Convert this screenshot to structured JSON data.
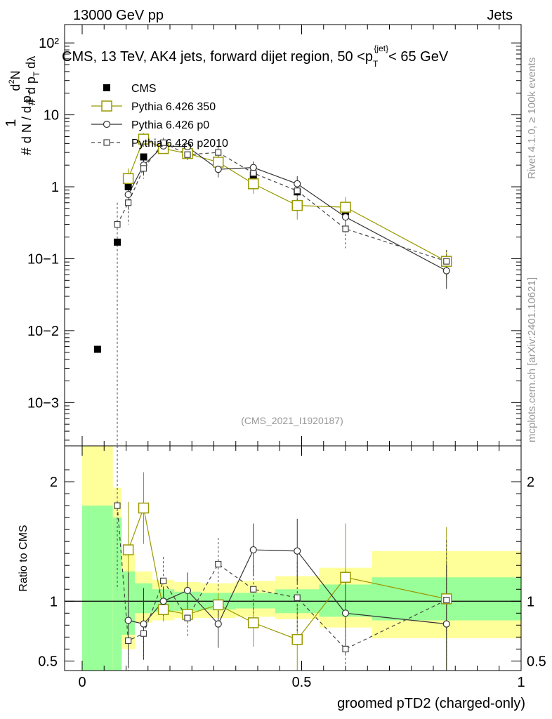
{
  "header": {
    "left": "13000 GeV pp",
    "right": "Jets"
  },
  "side_labels": {
    "rivet": "Rivet 4.1.0, ≥ 100k events",
    "mcplots": "mcplots.cern.ch [arXiv:2401.10621]"
  },
  "colors": {
    "cms": "#000000",
    "pythia350": "#999900",
    "p0": "#333333",
    "p2010": "#444444",
    "band_yellow": "#ffff99",
    "band_green": "#99ff99",
    "watermark": "#999999"
  },
  "chart_data": [
    {
      "type": "line",
      "title": "CMS, 13 TeV, AK4 jets, forward dijet region, 50 <p",
      "title_sup": "{jet}",
      "title_sub": "T",
      "title_tail": "< 65 GeV",
      "ylabel": "# 1/(d N / d p_T) # d²N/(d p_T dλ)",
      "yscale": "log",
      "ylim": [
        0.00025,
        180
      ],
      "xlim": [
        -0.04,
        1.0
      ],
      "ytick_labels": [
        "10−3",
        "10−2",
        "10−1",
        "1",
        "10",
        "10²"
      ],
      "watermark": "(CMS_2021_I1920187)",
      "legend": [
        "CMS",
        "Pythia 6.426 350",
        "Pythia 6.426 p0",
        "Pythia 6.426 p2010"
      ],
      "series": [
        {
          "name": "CMS",
          "x": [
            0.035,
            0.08,
            0.105,
            0.14,
            0.185,
            0.24,
            0.31,
            0.39,
            0.49,
            0.6,
            0.83
          ],
          "y": [
            0.0055,
            0.17,
            1.0,
            2.6,
            3.8,
            3.5,
            2.3,
            1.45,
            0.85,
            0.45,
            0.09
          ]
        },
        {
          "name": "Pythia 6.426 350",
          "x": [
            0.105,
            0.14,
            0.185,
            0.24,
            0.31,
            0.39,
            0.49,
            0.6,
            0.83
          ],
          "y": [
            1.3,
            4.6,
            3.4,
            2.9,
            2.2,
            1.1,
            0.55,
            0.52,
            0.092
          ],
          "err": [
            0.5,
            1.0,
            0.5,
            0.4,
            0.4,
            0.3,
            0.2,
            0.2,
            0.04
          ]
        },
        {
          "name": "Pythia 6.426 p0",
          "x": [
            0.105,
            0.14,
            0.185,
            0.24,
            0.31,
            0.39,
            0.49,
            0.6,
            0.83
          ],
          "y": [
            0.78,
            2.0,
            3.7,
            3.6,
            1.75,
            1.85,
            1.1,
            0.38,
            0.068
          ],
          "err": [
            0.3,
            0.5,
            0.5,
            0.4,
            0.4,
            0.4,
            0.3,
            0.15,
            0.03
          ]
        },
        {
          "name": "Pythia 6.426 p2010",
          "x": [
            0.08,
            0.105,
            0.14,
            0.185,
            0.24,
            0.31,
            0.39,
            0.49,
            0.6,
            0.83
          ],
          "y": [
            0.3,
            0.6,
            1.8,
            4.1,
            2.8,
            3.0,
            1.55,
            0.88,
            0.26,
            0.092
          ],
          "err": [
            0.3,
            0.3,
            0.5,
            0.7,
            0.5,
            0.6,
            0.4,
            0.3,
            0.12,
            0.04
          ]
        }
      ]
    },
    {
      "type": "line",
      "title": "",
      "xlabel": "groomed pTD2 (charged-only)",
      "ylabel": "Ratio to CMS",
      "ylim": [
        0.42,
        2.3
      ],
      "xlim": [
        -0.04,
        1.0
      ],
      "yticks": [
        0.5,
        1,
        2
      ],
      "ytick_labels": [
        "0.5",
        "1",
        "2"
      ],
      "xticks": [
        0,
        0.5,
        1
      ],
      "xtick_labels": [
        "0",
        "0.5",
        "1"
      ],
      "bands": [
        {
          "x0": 0.0,
          "x1": 0.07,
          "y_lo": 0.42,
          "y_hi": 2.3,
          "inner_lo": 0.42,
          "inner_hi": 1.8
        },
        {
          "x0": 0.07,
          "x1": 0.09,
          "y_lo": 0.42,
          "y_hi": 1.95,
          "inner_lo": 0.42,
          "inner_hi": 1.7
        },
        {
          "x0": 0.09,
          "x1": 0.12,
          "y_lo": 0.6,
          "y_hi": 1.4,
          "inner_lo": 0.72,
          "inner_hi": 1.25
        },
        {
          "x0": 0.12,
          "x1": 0.16,
          "y_lo": 0.82,
          "y_hi": 1.25,
          "inner_lo": 0.9,
          "inner_hi": 1.15
        },
        {
          "x0": 0.16,
          "x1": 0.21,
          "y_lo": 0.84,
          "y_hi": 1.18,
          "inner_lo": 0.91,
          "inner_hi": 1.1
        },
        {
          "x0": 0.21,
          "x1": 0.27,
          "y_lo": 0.86,
          "y_hi": 1.16,
          "inner_lo": 0.92,
          "inner_hi": 1.08
        },
        {
          "x0": 0.27,
          "x1": 0.35,
          "y_lo": 0.86,
          "y_hi": 1.15,
          "inner_lo": 0.93,
          "inner_hi": 1.07
        },
        {
          "x0": 0.35,
          "x1": 0.44,
          "y_lo": 0.87,
          "y_hi": 1.17,
          "inner_lo": 0.94,
          "inner_hi": 1.07
        },
        {
          "x0": 0.44,
          "x1": 0.54,
          "y_lo": 0.85,
          "y_hi": 1.21,
          "inner_lo": 0.9,
          "inner_hi": 1.1
        },
        {
          "x0": 0.54,
          "x1": 0.66,
          "y_lo": 0.78,
          "y_hi": 1.28,
          "inner_lo": 0.87,
          "inner_hi": 1.14
        },
        {
          "x0": 0.66,
          "x1": 1.0,
          "y_lo": 0.69,
          "y_hi": 1.42,
          "inner_lo": 0.84,
          "inner_hi": 1.2
        }
      ],
      "series": [
        {
          "name": "Pythia 6.426 350",
          "x": [
            0.105,
            0.14,
            0.185,
            0.24,
            0.31,
            0.39,
            0.49,
            0.6,
            0.83
          ],
          "y": [
            1.43,
            1.78,
            0.93,
            0.89,
            0.97,
            0.82,
            0.68,
            1.2,
            1.02
          ],
          "err": [
            0.4,
            0.3,
            0.1,
            0.08,
            0.1,
            0.2,
            0.3,
            0.45,
            0.6
          ]
        },
        {
          "name": "Pythia 6.426 p0",
          "x": [
            0.105,
            0.14,
            0.185,
            0.24,
            0.31,
            0.39,
            0.49,
            0.6,
            0.83
          ],
          "y": [
            0.84,
            0.81,
            1.0,
            1.09,
            0.81,
            1.43,
            1.42,
            0.9,
            0.81
          ],
          "err": [
            0.4,
            0.3,
            0.12,
            0.15,
            0.2,
            0.22,
            0.27,
            0.35,
            0.5
          ]
        },
        {
          "name": "Pythia 6.426 p2010",
          "x": [
            0.08,
            0.105,
            0.14,
            0.185,
            0.24,
            0.31,
            0.39,
            0.49,
            0.6,
            0.83
          ],
          "y": [
            1.8,
            0.67,
            0.73,
            1.17,
            0.86,
            1.31,
            1.1,
            1.03,
            0.6,
            1.01
          ],
          "err": [
            0.7,
            0.25,
            0.2,
            0.2,
            0.15,
            0.22,
            0.2,
            0.3,
            0.35,
            0.5
          ]
        }
      ]
    }
  ]
}
